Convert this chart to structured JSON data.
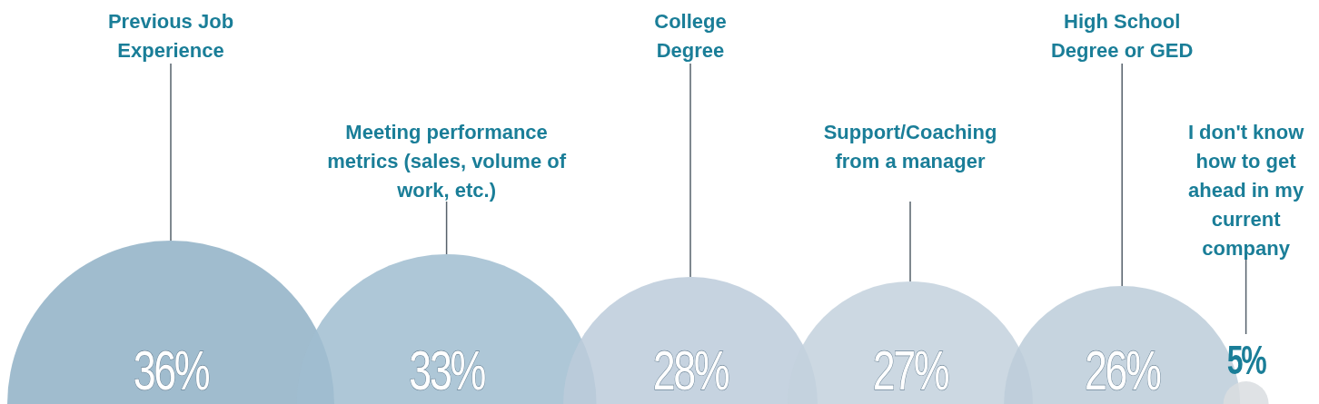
{
  "chart_data": {
    "type": "other",
    "categories": [
      "Previous Job Experience",
      "Meeting performance metrics (sales, volume of work, etc.)",
      "College Degree",
      "Support/Coaching from a manager",
      "High School Degree or GED",
      "I don't know how to get ahead in my current company"
    ],
    "values": [
      36,
      33,
      28,
      27,
      26,
      5
    ],
    "value_labels": [
      "36%",
      "33%",
      "28%",
      "27%",
      "26%",
      "5%"
    ],
    "colors": [
      "#8fb0c6",
      "#a0bdd0",
      "#bccbda",
      "#c3d1dd",
      "#bccdd9",
      "#d9dde0"
    ]
  }
}
